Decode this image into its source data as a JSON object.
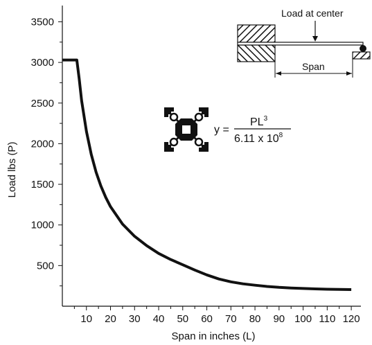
{
  "chart_data": {
    "type": "line",
    "title": "",
    "xlabel": "Span in inches (L)",
    "ylabel": "Load lbs (P)",
    "xlim": [
      0,
      124
    ],
    "ylim": [
      0,
      3700
    ],
    "x_ticks": [
      10,
      20,
      30,
      40,
      50,
      60,
      70,
      80,
      90,
      100,
      110,
      120
    ],
    "y_ticks": [
      500,
      1000,
      1500,
      2000,
      2500,
      3000,
      3500
    ],
    "grid": false,
    "series": [
      {
        "x": [
          0,
          6,
          7,
          8,
          10,
          12,
          14,
          16,
          18,
          20,
          25,
          30,
          35,
          40,
          45,
          50,
          55,
          60,
          65,
          70,
          75,
          80,
          85,
          90,
          95,
          100,
          105,
          110,
          115,
          120
        ],
        "y": [
          3030,
          3030,
          2800,
          2530,
          2150,
          1870,
          1650,
          1480,
          1340,
          1225,
          1010,
          860,
          745,
          650,
          575,
          510,
          445,
          385,
          335,
          300,
          275,
          258,
          243,
          232,
          224,
          218,
          213,
          209,
          206,
          205
        ],
        "color": "#111111"
      }
    ],
    "annotations": {
      "load_label": "Load at center",
      "span_label": "Span",
      "equation": {
        "lhs": "y =",
        "numerator_base": "PL",
        "numerator_exp": "3",
        "denominator_base": "6.11 x 10",
        "denominator_exp": "8"
      }
    }
  }
}
